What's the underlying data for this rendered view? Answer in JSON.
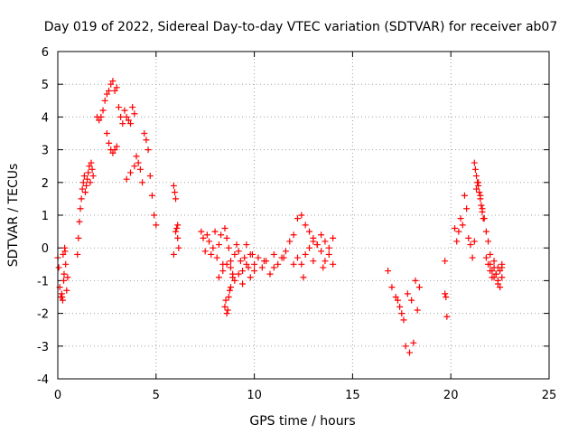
{
  "chart_data": {
    "type": "scatter",
    "title": "Day 019 of 2022, Sidereal Day-to-day VTEC variation (SDTVAR) for receiver ab07",
    "xlabel": "GPS time / hours",
    "ylabel": "SDTVAR / TECUs",
    "xlim": [
      0,
      25
    ],
    "ylim": [
      -4,
      6
    ],
    "xticks": [
      0,
      5,
      10,
      15,
      20,
      25
    ],
    "yticks": [
      -4,
      -3,
      -2,
      -1,
      0,
      1,
      2,
      3,
      4,
      5,
      6
    ],
    "grid": true,
    "marker": "+",
    "color": "#ff0000",
    "series": [
      {
        "name": "SDTVAR",
        "x": [
          0.0,
          0.05,
          0.1,
          0.15,
          0.2,
          0.25,
          0.3,
          0.35,
          0.4,
          0.45,
          0.5,
          0.22,
          0.27,
          0.32,
          0.37,
          1.0,
          1.05,
          1.1,
          1.15,
          1.2,
          1.25,
          1.3,
          1.35,
          1.4,
          1.45,
          1.5,
          1.55,
          1.6,
          1.65,
          1.7,
          1.75,
          1.8,
          2.0,
          2.1,
          2.2,
          2.3,
          2.4,
          2.5,
          2.6,
          2.7,
          2.8,
          2.9,
          3.0,
          3.1,
          3.2,
          3.3,
          3.4,
          3.5,
          3.6,
          3.7,
          3.8,
          3.9,
          4.0,
          4.1,
          4.2,
          4.3,
          4.4,
          4.5,
          4.6,
          4.7,
          4.8,
          4.9,
          5.0,
          2.5,
          2.6,
          2.7,
          2.8,
          2.9,
          3.0,
          3.5,
          3.7,
          3.9,
          5.9,
          5.95,
          6.0,
          6.05,
          6.1,
          6.15,
          5.9,
          6.0,
          6.1,
          7.3,
          7.4,
          7.5,
          7.6,
          7.7,
          7.8,
          7.9,
          8.0,
          8.1,
          8.2,
          8.3,
          8.4,
          8.5,
          8.6,
          8.7,
          8.8,
          8.9,
          9.0,
          9.1,
          9.2,
          9.3,
          9.4,
          9.5,
          9.6,
          9.7,
          9.8,
          9.9,
          10.0,
          10.2,
          10.4,
          10.6,
          10.8,
          11.0,
          11.2,
          11.4,
          11.6,
          11.8,
          12.0,
          12.2,
          12.4,
          12.6,
          12.8,
          13.0,
          13.2,
          13.4,
          13.6,
          13.8,
          14.0,
          8.2,
          8.4,
          8.6,
          8.8,
          9.0,
          9.2,
          9.4,
          9.6,
          9.8,
          10.0,
          10.5,
          11.0,
          11.5,
          12.0,
          12.5,
          13.0,
          13.5,
          14.0,
          12.2,
          12.4,
          12.6,
          12.8,
          13.0,
          13.2,
          13.4,
          13.6,
          13.8,
          8.5,
          8.6,
          8.7,
          8.8,
          8.9,
          8.55,
          8.65,
          8.75,
          16.8,
          17.0,
          17.2,
          17.4,
          17.6,
          17.8,
          18.0,
          18.2,
          18.4,
          17.3,
          17.5,
          17.7,
          17.9,
          18.1,
          18.3,
          19.7,
          19.75,
          19.8,
          19.7,
          20.2,
          20.3,
          20.4,
          20.5,
          20.6,
          20.7,
          20.8,
          20.9,
          21.0,
          21.1,
          21.2,
          21.3,
          21.4,
          21.5,
          21.6,
          21.7,
          21.8,
          21.9,
          22.0,
          22.1,
          22.2,
          22.3,
          22.4,
          22.5,
          22.6,
          21.2,
          21.25,
          21.3,
          21.35,
          21.4,
          21.45,
          21.5,
          21.55,
          21.6,
          21.65,
          21.8,
          21.9,
          22.0,
          22.1,
          22.2,
          22.3,
          22.4,
          22.5,
          22.6,
          22.0,
          22.2,
          22.4,
          22.6
        ],
        "y": [
          -0.3,
          -0.6,
          -1.2,
          -1.5,
          -1.4,
          -1.6,
          -1.0,
          0.0,
          -0.5,
          -1.3,
          -0.9,
          -1.5,
          -0.2,
          -0.8,
          -0.1,
          -0.2,
          0.3,
          0.8,
          1.2,
          1.5,
          1.8,
          2.0,
          2.2,
          1.7,
          1.9,
          2.1,
          2.3,
          2.5,
          2.0,
          2.6,
          2.4,
          2.2,
          4.0,
          3.9,
          4.0,
          4.2,
          4.5,
          4.7,
          4.8,
          5.0,
          5.1,
          4.8,
          4.9,
          4.3,
          4.0,
          3.8,
          4.2,
          4.0,
          3.9,
          3.8,
          4.3,
          4.1,
          2.8,
          2.6,
          2.4,
          2.0,
          3.5,
          3.3,
          3.0,
          2.2,
          1.6,
          1.0,
          0.7,
          3.5,
          3.2,
          3.0,
          2.9,
          3.0,
          3.1,
          2.1,
          2.3,
          2.5,
          1.9,
          1.7,
          1.5,
          0.6,
          0.3,
          0.0,
          -0.2,
          0.5,
          0.7,
          0.5,
          0.3,
          -0.1,
          0.4,
          0.2,
          -0.2,
          0.0,
          0.5,
          -0.3,
          0.1,
          0.4,
          -0.5,
          0.6,
          0.3,
          0.0,
          -0.4,
          -0.8,
          -0.2,
          0.1,
          -0.1,
          -0.4,
          -0.7,
          -0.3,
          0.1,
          -0.6,
          -0.9,
          -0.2,
          -0.5,
          -0.3,
          -0.6,
          -0.4,
          -0.8,
          -0.2,
          -0.5,
          -0.3,
          -0.1,
          0.2,
          0.4,
          0.9,
          1.0,
          0.7,
          0.5,
          0.3,
          0.1,
          0.4,
          0.2,
          0.0,
          0.3,
          -0.9,
          -0.7,
          -0.5,
          -0.6,
          -1.0,
          -0.8,
          -1.1,
          -0.5,
          -0.2,
          -0.7,
          -0.4,
          -0.6,
          -0.3,
          -0.5,
          -0.9,
          -0.4,
          -0.6,
          -0.5,
          -0.3,
          -0.5,
          -0.2,
          0.0,
          0.2,
          0.1,
          -0.1,
          -0.4,
          -0.2,
          -1.8,
          -2.0,
          -1.5,
          -1.2,
          -0.9,
          -1.6,
          -1.9,
          -1.3,
          -0.7,
          -1.2,
          -1.5,
          -1.8,
          -2.2,
          -1.4,
          -1.6,
          -1.0,
          -1.2,
          -1.6,
          -2.0,
          -3.0,
          -3.2,
          -2.9,
          -1.9,
          -1.4,
          -1.5,
          -2.1,
          -0.4,
          0.6,
          0.2,
          0.5,
          0.9,
          0.7,
          1.6,
          1.2,
          0.3,
          0.1,
          -0.3,
          0.2,
          1.8,
          2.0,
          1.6,
          1.2,
          0.9,
          0.5,
          0.2,
          -0.5,
          -0.7,
          -0.9,
          -0.8,
          -1.1,
          -1.2,
          -0.6,
          2.6,
          2.4,
          2.2,
          2.0,
          1.9,
          1.7,
          1.5,
          1.3,
          1.1,
          0.9,
          -0.3,
          -0.5,
          -0.7,
          -0.9,
          -0.6,
          -0.8,
          -1.0,
          -0.7,
          -0.5,
          -0.2,
          -0.4,
          -0.6,
          -0.9
        ]
      }
    ]
  }
}
